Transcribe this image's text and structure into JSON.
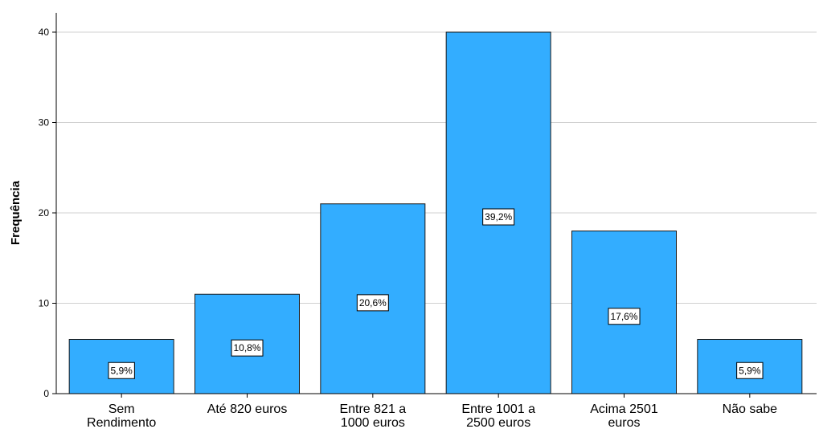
{
  "chart_data": {
    "type": "bar",
    "title": "",
    "xlabel": "",
    "ylabel": "Frequência",
    "ylim": [
      0,
      40
    ],
    "yticks": [
      0,
      10,
      20,
      30,
      40
    ],
    "grid": true,
    "legend": "none",
    "categories": [
      [
        "Sem",
        "Rendimento"
      ],
      [
        "Até 820 euros"
      ],
      [
        "Entre 821 a",
        "1000 euros"
      ],
      [
        "Entre 1001 a",
        "2500 euros"
      ],
      [
        "Acima 2501",
        "euros"
      ],
      [
        "Não sabe"
      ]
    ],
    "values": [
      6,
      11,
      21,
      40,
      18,
      6
    ],
    "data_labels": [
      "5,9%",
      "10,8%",
      "20,6%",
      "39,2%",
      "17,6%",
      "5,9%"
    ],
    "bar_color": "#33adff",
    "bar_edge_color": "#1a1a1a",
    "grid_color": "#d0d0d0"
  }
}
